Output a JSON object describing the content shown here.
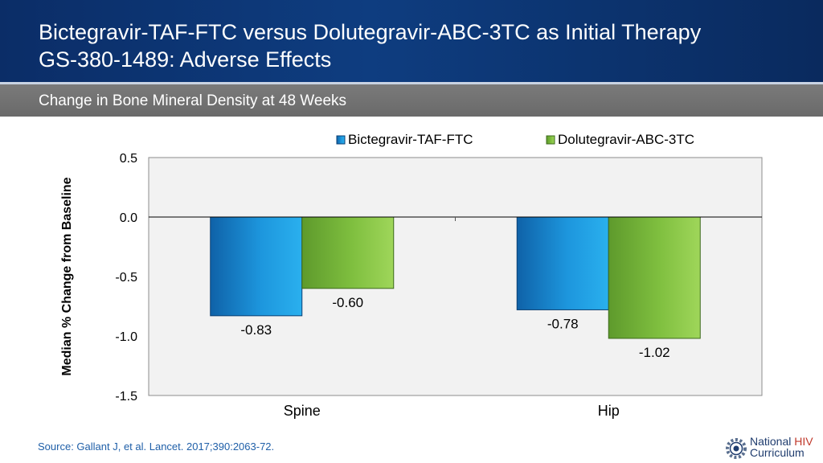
{
  "header": {
    "title_line1": "Bictegravir-TAF-FTC versus Dolutegravir-ABC-3TC as Initial Therapy",
    "title_line2": "GS-380-1489: Adverse Effects"
  },
  "subheader": {
    "text": "Change in Bone Mineral Density at 48 Weeks"
  },
  "chart_data": {
    "type": "bar",
    "title": "",
    "categories": [
      "Spine",
      "Hip"
    ],
    "series": [
      {
        "name": "Bictegravir-TAF-FTC",
        "values": [
          -0.83,
          -0.78
        ],
        "labels": [
          "-0.83",
          "-0.78"
        ],
        "color": "#1b8fd6"
      },
      {
        "name": "Dolutegravir-ABC-3TC",
        "values": [
          -0.6,
          -1.02
        ],
        "labels": [
          "-0.60",
          "-1.02"
        ],
        "color": "#7dbd3f"
      }
    ],
    "xlabel": "",
    "ylabel": "Median % Change from Baseline",
    "ylim": [
      -1.5,
      0.5
    ],
    "yticks": [
      0.5,
      0.0,
      -0.5,
      -1.0,
      -1.5
    ],
    "ytick_labels": [
      "0.5",
      "0.0",
      "-0.5",
      "-1.0",
      "-1.5"
    ],
    "legend_position": "top-right",
    "grid": false,
    "plot_background": "#f2f2f2"
  },
  "footer": {
    "source": "Source: Gallant J, et al. Lancet. 2017;390:2063-72.",
    "logo_word1": "National",
    "logo_word2": "HIV",
    "logo_word3": "Curriculum",
    "logo_icon": "gear-icon"
  }
}
